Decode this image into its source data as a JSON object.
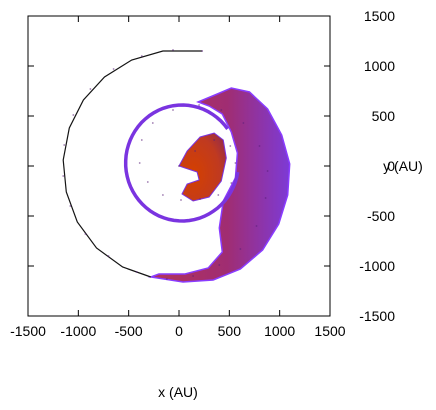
{
  "chart_data": {
    "type": "scatter",
    "title": "",
    "xlabel": "x (AU)",
    "ylabel": "y (AU)",
    "xlim": [
      -1500,
      1500
    ],
    "ylim": [
      -1500,
      1500
    ],
    "x_ticks": [
      -1500,
      -1000,
      -500,
      0,
      500,
      1000,
      1500
    ],
    "y_ticks": [
      1500,
      1000,
      500,
      0,
      -500,
      -1000,
      -1500
    ],
    "x_tick_labels": [
      "-1500",
      "-1000",
      "-500",
      "0",
      "500",
      "1000",
      "1500"
    ],
    "y_tick_labels": [
      "1500",
      "1000",
      "500",
      "0",
      "-500",
      "-1000",
      "-1500"
    ],
    "y_axis_side": "right",
    "grid": false,
    "legend": "none",
    "series": [
      {
        "values": "spiral arm of particles from about (0, 0) outward to about (230, 1150)",
        "points": [
          [
            0,
            0
          ],
          [
            160,
            150
          ],
          [
            350,
            260
          ],
          [
            510,
            200
          ],
          [
            560,
            30
          ],
          [
            520,
            -170
          ],
          [
            390,
            -290
          ],
          [
            210,
            -330
          ],
          [
            20,
            -340
          ],
          [
            -160,
            -290
          ],
          [
            -310,
            -160
          ],
          [
            -390,
            30
          ],
          [
            -370,
            260
          ],
          [
            -260,
            430
          ],
          [
            -60,
            560
          ],
          [
            200,
            610
          ],
          [
            420,
            560
          ],
          [
            640,
            430
          ],
          [
            800,
            200
          ],
          [
            880,
            -50
          ],
          [
            860,
            -320
          ],
          [
            770,
            -600
          ],
          [
            610,
            -830
          ],
          [
            400,
            -990
          ],
          [
            140,
            -1100
          ],
          [
            -120,
            -1130
          ],
          [
            -420,
            -1060
          ],
          [
            -700,
            -900
          ],
          [
            -930,
            -680
          ],
          [
            -1080,
            -400
          ],
          [
            -1150,
            -100
          ],
          [
            -1140,
            210
          ],
          [
            -1050,
            510
          ],
          [
            -880,
            770
          ],
          [
            -650,
            970
          ],
          [
            -370,
            1100
          ],
          [
            -60,
            1160
          ],
          [
            230,
            1150
          ]
        ]
      }
    ],
    "colors": {
      "core": "#d44000",
      "arm": "#a52a68",
      "edge": "#8a3cff",
      "outer_line": "#141414"
    }
  }
}
